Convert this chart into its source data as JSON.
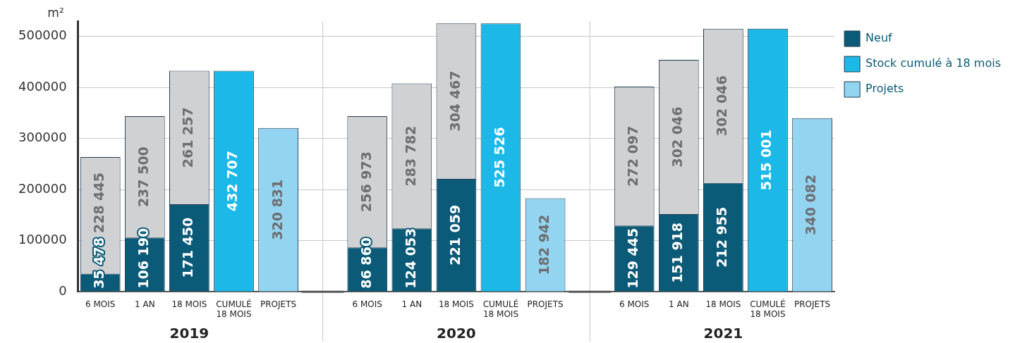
{
  "chart_data": {
    "type": "bar",
    "stacked": true,
    "ylabel": "m²",
    "categories": [
      "6 MOIS",
      "1 AN",
      "18 MOIS",
      "CUMULÉ 18 MOIS",
      "PROJETS",
      null,
      "6 MOIS",
      "1 AN",
      "18 MOIS",
      "CUMULÉ 18 MOIS",
      "PROJETS",
      null,
      "6 MOIS",
      "1 AN",
      "18 MOIS",
      "CUMULÉ 18 MOIS",
      "PROJETS"
    ],
    "series": [
      {
        "name": "Neuf",
        "color": "#0b5a78",
        "values": [
          35478,
          106190,
          171450,
          null,
          null,
          null,
          86860,
          124053,
          221059,
          null,
          null,
          null,
          129445,
          151918,
          212955,
          null,
          null
        ],
        "value_labels": [
          "35 478",
          "106 190",
          "171 450",
          null,
          null,
          null,
          "86 860",
          "124 053",
          "221 059",
          null,
          null,
          null,
          "129 445",
          "151 918",
          "212 955",
          null,
          null
        ]
      },
      {
        "color": "#d0d1d3",
        "values": [
          228445,
          237500,
          261257,
          null,
          null,
          null,
          256973,
          283782,
          304467,
          null,
          null,
          null,
          272097,
          302046,
          302046,
          null,
          null
        ],
        "value_labels": [
          "228 445",
          "237 500",
          "261 257",
          null,
          null,
          null,
          "256 973",
          "283 782",
          "304 467",
          null,
          null,
          null,
          "272 097",
          "302 046",
          "302 046",
          null,
          null
        ]
      },
      {
        "name": "Stock cumulé à 18 mois",
        "color": "#1cb9e8",
        "values": [
          null,
          null,
          null,
          432707,
          null,
          null,
          null,
          null,
          null,
          525526,
          null,
          null,
          null,
          null,
          null,
          515001,
          null
        ],
        "value_labels": [
          null,
          null,
          null,
          "432 707",
          null,
          null,
          null,
          null,
          null,
          "525 526",
          null,
          null,
          null,
          null,
          null,
          "515 001",
          null
        ]
      },
      {
        "name": "Projets",
        "color": "#93d4f1",
        "values": [
          null,
          null,
          null,
          null,
          320831,
          null,
          null,
          null,
          null,
          null,
          182942,
          null,
          null,
          null,
          null,
          null,
          340082
        ],
        "value_labels": [
          null,
          null,
          null,
          null,
          "320 831",
          null,
          null,
          null,
          null,
          null,
          "182 942",
          null,
          null,
          null,
          null,
          null,
          "340 082"
        ]
      }
    ],
    "ylim": [
      0,
      530000
    ],
    "yticks": [
      0,
      100000,
      200000,
      300000,
      400000,
      500000
    ],
    "grid": true,
    "legend": "top right",
    "annotations": [
      "2019",
      "2020",
      "2021"
    ]
  }
}
